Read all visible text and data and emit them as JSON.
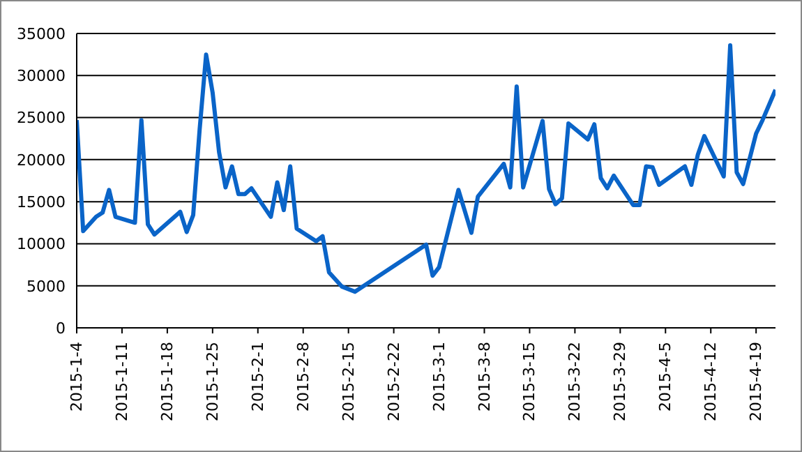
{
  "chart_data": {
    "type": "line",
    "x": [
      "2015-01-04",
      "2015-01-05",
      "2015-01-07",
      "2015-01-08",
      "2015-01-09",
      "2015-01-10",
      "2015-01-13",
      "2015-01-14",
      "2015-01-15",
      "2015-01-16",
      "2015-01-20",
      "2015-01-21",
      "2015-01-22",
      "2015-01-23",
      "2015-01-24",
      "2015-01-25",
      "2015-01-26",
      "2015-01-27",
      "2015-01-28",
      "2015-01-29",
      "2015-01-30",
      "2015-01-31",
      "2015-02-03",
      "2015-02-04",
      "2015-02-05",
      "2015-02-06",
      "2015-02-07",
      "2015-02-10",
      "2015-02-11",
      "2015-02-12",
      "2015-02-14",
      "2015-02-16",
      "2015-02-27",
      "2015-02-28",
      "2015-03-01",
      "2015-03-04",
      "2015-03-06",
      "2015-03-07",
      "2015-03-11",
      "2015-03-12",
      "2015-03-13",
      "2015-03-14",
      "2015-03-17",
      "2015-03-18",
      "2015-03-19",
      "2015-03-20",
      "2015-03-21",
      "2015-03-24",
      "2015-03-25",
      "2015-03-26",
      "2015-03-27",
      "2015-03-28",
      "2015-03-31",
      "2015-04-01",
      "2015-04-02",
      "2015-04-03",
      "2015-04-04",
      "2015-04-08",
      "2015-04-09",
      "2015-04-10",
      "2015-04-11",
      "2015-04-14",
      "2015-04-15",
      "2015-04-16",
      "2015-04-17",
      "2015-04-19",
      "2015-04-20",
      "2015-04-22"
    ],
    "series": [
      {
        "color": "#0a64c8",
        "values": [
          24700,
          11500,
          13200,
          13700,
          16400,
          13200,
          12500,
          24700,
          12300,
          11100,
          13800,
          11400,
          13400,
          23600,
          32500,
          28000,
          20900,
          16700,
          19200,
          15900,
          15900,
          16600,
          13200,
          17300,
          14000,
          19200,
          11800,
          10300,
          10900,
          6600,
          4900,
          4300,
          9900,
          6200,
          7200,
          16400,
          11300,
          15600,
          19500,
          16700,
          28700,
          16700,
          24600,
          16500,
          14700,
          15400,
          24300,
          22400,
          24200,
          17800,
          16600,
          18100,
          14600,
          14600,
          19200,
          19100,
          17000,
          19200,
          17000,
          20600,
          22800,
          18000,
          33600,
          18500,
          17100,
          23100,
          24700,
          28300
        ]
      }
    ],
    "xlim": [
      "2015-01-04",
      "2015-04-22"
    ],
    "xticks": [
      {
        "value": "2015-01-04",
        "label": "2015-1-4"
      },
      {
        "value": "2015-01-11",
        "label": "2015-1-11"
      },
      {
        "value": "2015-01-18",
        "label": "2015-1-18"
      },
      {
        "value": "2015-01-25",
        "label": "2015-1-25"
      },
      {
        "value": "2015-02-01",
        "label": "2015-2-1"
      },
      {
        "value": "2015-02-08",
        "label": "2015-2-8"
      },
      {
        "value": "2015-02-15",
        "label": "2015-2-15"
      },
      {
        "value": "2015-02-22",
        "label": "2015-2-22"
      },
      {
        "value": "2015-03-01",
        "label": "2015-3-1"
      },
      {
        "value": "2015-03-08",
        "label": "2015-3-8"
      },
      {
        "value": "2015-03-15",
        "label": "2015-3-15"
      },
      {
        "value": "2015-03-22",
        "label": "2015-3-22"
      },
      {
        "value": "2015-03-29",
        "label": "2015-3-29"
      },
      {
        "value": "2015-04-05",
        "label": "2015-4-5"
      },
      {
        "value": "2015-04-12",
        "label": "2015-4-12"
      },
      {
        "value": "2015-04-19",
        "label": "2015-4-19"
      }
    ],
    "ylim": [
      0,
      35000
    ],
    "yticks": [
      0,
      5000,
      10000,
      15000,
      20000,
      25000,
      30000,
      35000
    ],
    "grid": "y",
    "legend": false,
    "marker": "none",
    "line_style": "solid"
  }
}
